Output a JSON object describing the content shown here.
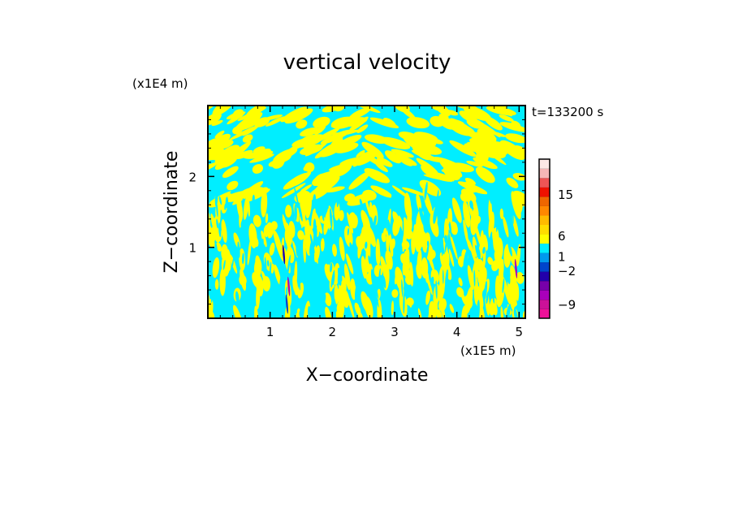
{
  "chart_data": {
    "type": "heatmap",
    "title": "vertical velocity",
    "xlabel": "X−coordinate",
    "ylabel": "Z−coordinate",
    "x_unit": "(x1E5 m)",
    "y_unit": "(x1E4 m)",
    "time_label": "t=133200 s",
    "xlim": [
      0,
      5.1
    ],
    "ylim": [
      0,
      3
    ],
    "x_ticks": [
      {
        "value": 1,
        "label": "1"
      },
      {
        "value": 2,
        "label": "2"
      },
      {
        "value": 3,
        "label": "3"
      },
      {
        "value": 4,
        "label": "4"
      },
      {
        "value": 5,
        "label": "5"
      }
    ],
    "y_ticks": [
      {
        "value": 1,
        "label": "1"
      },
      {
        "value": 2,
        "label": "2"
      }
    ],
    "field_colors": {
      "positive": "#ffff00",
      "negative": "#00eeff"
    },
    "colorbar": {
      "levels": [
        {
          "color": "#ee1199"
        },
        {
          "color": "#cc1199"
        },
        {
          "color": "#aa00bb"
        },
        {
          "color": "#7700aa"
        },
        {
          "color": "#2200aa"
        },
        {
          "color": "#0044cc"
        },
        {
          "color": "#0099ee"
        },
        {
          "color": "#00eeff"
        },
        {
          "color": "#ffff00"
        },
        {
          "color": "#ffdd00"
        },
        {
          "color": "#ffbb00"
        },
        {
          "color": "#ff8800"
        },
        {
          "color": "#ee6600"
        },
        {
          "color": "#ee1100"
        },
        {
          "color": "#ee5555"
        },
        {
          "color": "#f6b6b6"
        },
        {
          "color": "#fde8e6"
        }
      ],
      "labels": [
        {
          "label": "15",
          "pos": 0.78
        },
        {
          "label": "6",
          "pos": 0.52
        },
        {
          "label": "1",
          "pos": 0.39
        },
        {
          "label": "−2",
          "pos": 0.3
        },
        {
          "label": "−9",
          "pos": 0.09
        }
      ]
    }
  }
}
